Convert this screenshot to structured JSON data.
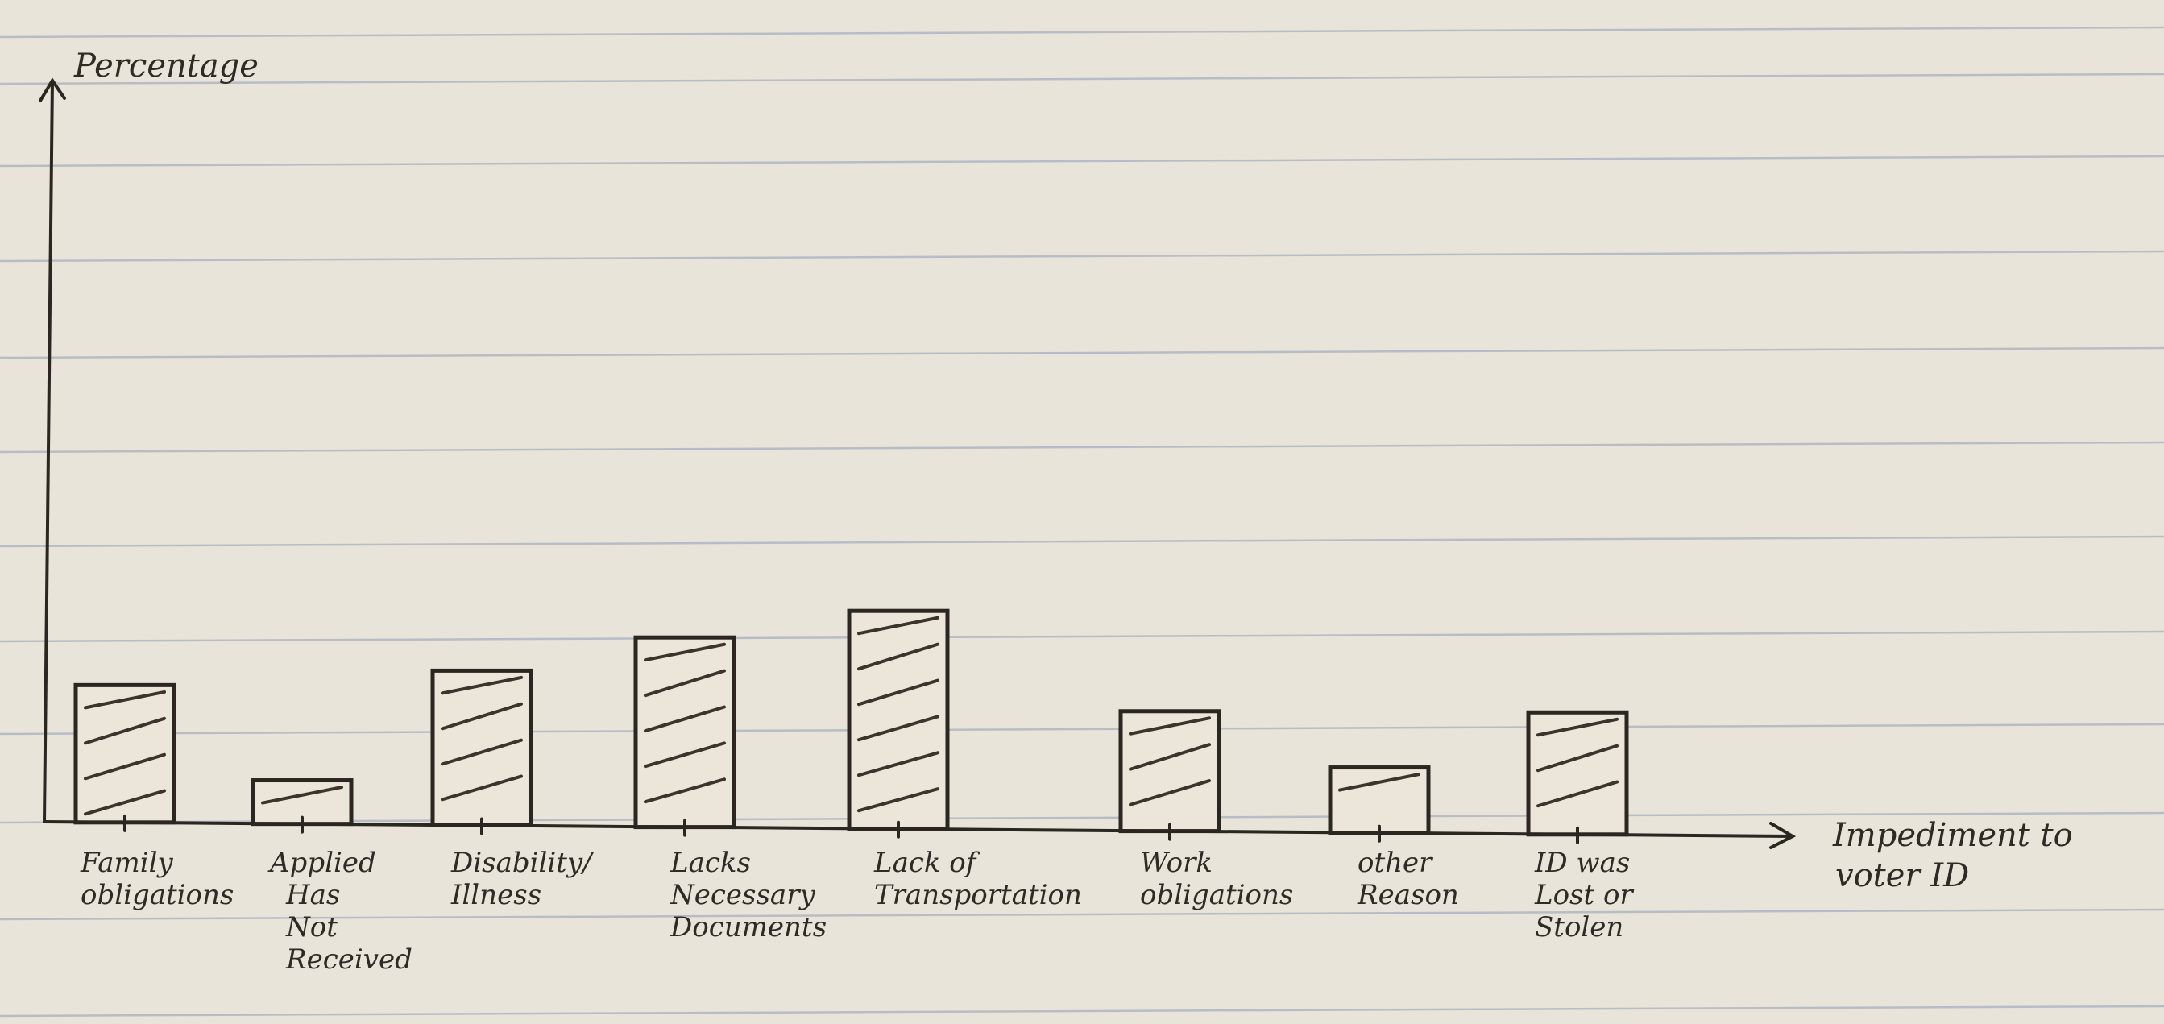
{
  "chart_data": {
    "type": "bar",
    "ylabel": "Percentage",
    "xlabel_lines": [
      "Impediment to",
      "voter ID"
    ],
    "categories": [
      [
        "Family",
        "obligations"
      ],
      [
        "Applied",
        "Has",
        "Not",
        "Received"
      ],
      [
        "Disability/",
        "Illness"
      ],
      [
        "Lacks",
        "Necessary",
        "Documents"
      ],
      [
        "Lack of",
        "Transportation"
      ],
      [
        "Work",
        "obligations"
      ],
      [
        "other",
        "Reason"
      ],
      [
        "ID was",
        "Lost or",
        "Stolen"
      ]
    ],
    "values": [
      6.3,
      2.0,
      7.1,
      8.7,
      10.0,
      5.5,
      3.0,
      5.6
    ],
    "ylim": [
      0,
      34
    ],
    "grid": false,
    "y_ticks_shown": false
  }
}
